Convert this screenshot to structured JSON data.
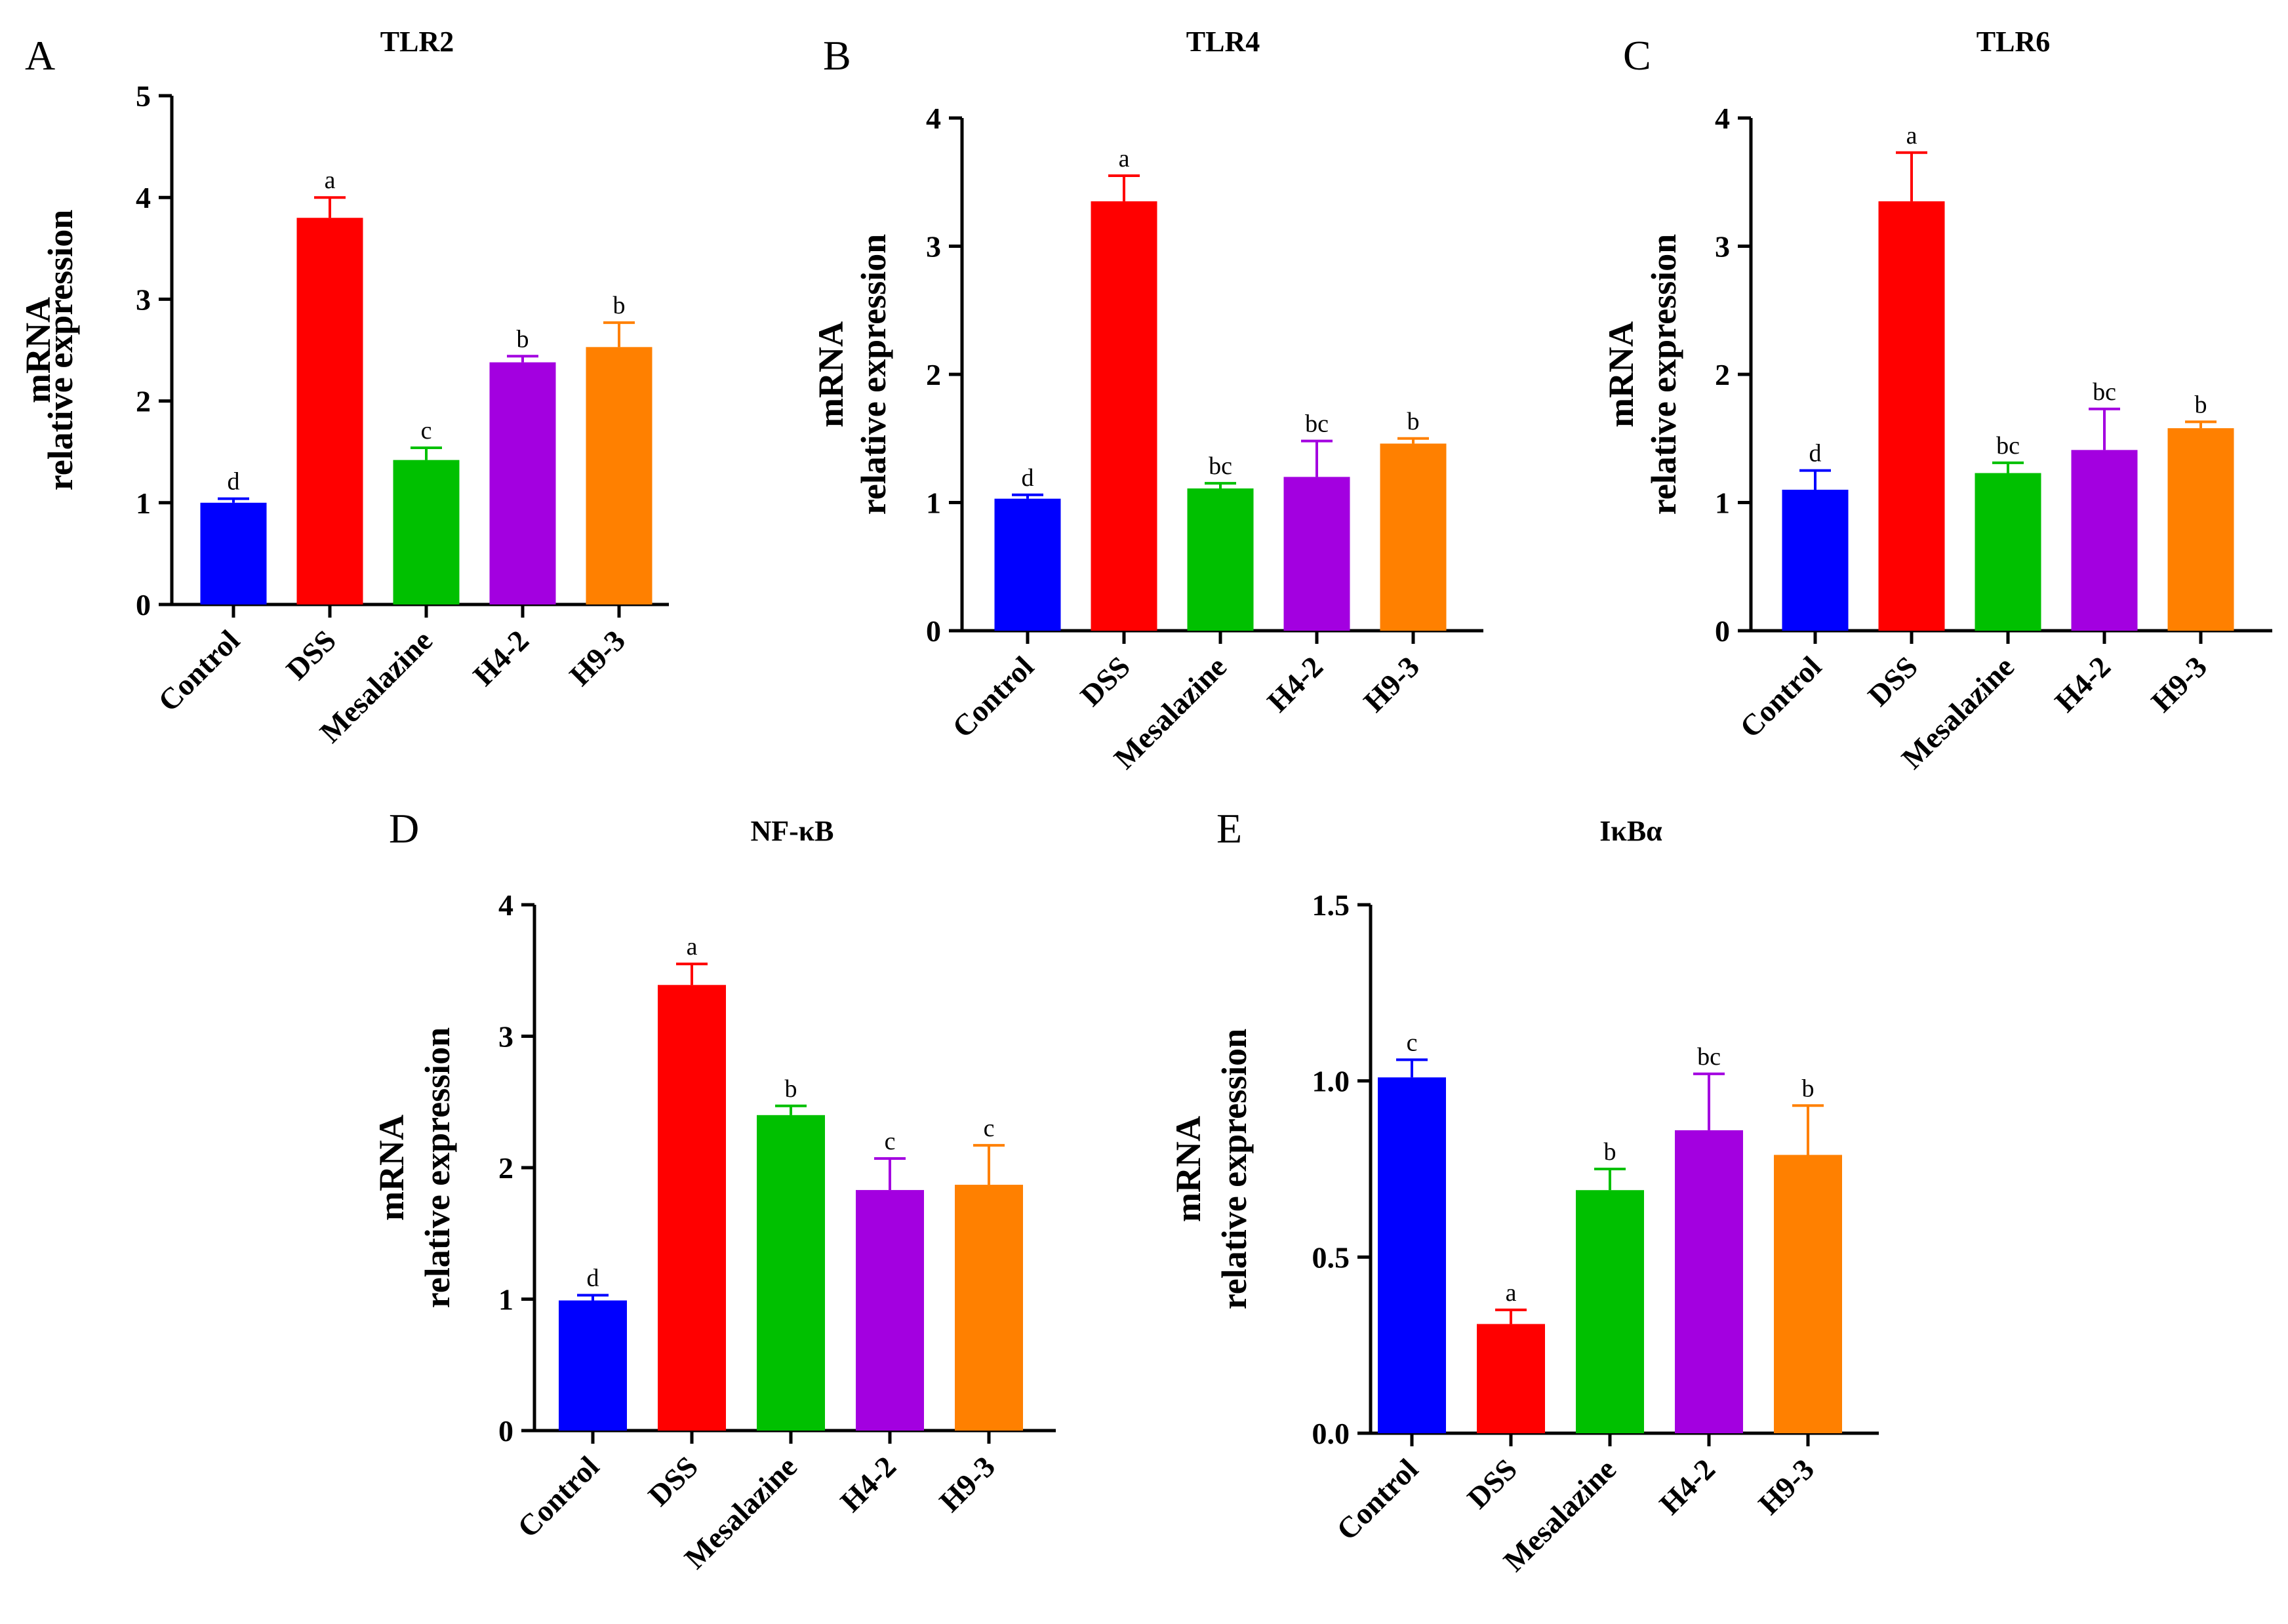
{
  "chart_data": [
    {
      "panel": "A",
      "type": "bar",
      "title": "TLR2",
      "ylabel_lines": [
        "mRNA",
        "relative expression"
      ],
      "categories": [
        "Control",
        "DSS",
        "Mesalazine",
        "H4-2",
        "H9-3"
      ],
      "values": [
        1.0,
        3.8,
        1.42,
        2.38,
        2.53
      ],
      "errors": [
        0.04,
        0.2,
        0.12,
        0.06,
        0.24
      ],
      "significance": [
        "d",
        "a",
        "c",
        "b",
        "b"
      ],
      "colors": [
        "#0000FF",
        "#FF0000",
        "#00C000",
        "#A300E0",
        "#FF8000"
      ],
      "ylim": [
        0,
        5
      ],
      "ytick_labels": [
        "0",
        "1",
        "2",
        "3",
        "4",
        "5"
      ]
    },
    {
      "panel": "B",
      "type": "bar",
      "title": "TLR4",
      "ylabel_lines": [
        "mRNA",
        "relative expression"
      ],
      "categories": [
        "Control",
        "DSS",
        "Mesalazine",
        "H4-2",
        "H9-3"
      ],
      "values": [
        1.03,
        3.35,
        1.11,
        1.2,
        1.46
      ],
      "errors": [
        0.03,
        0.2,
        0.04,
        0.28,
        0.04
      ],
      "significance": [
        "d",
        "a",
        "bc",
        "bc",
        "b"
      ],
      "colors": [
        "#0000FF",
        "#FF0000",
        "#00C000",
        "#A300E0",
        "#FF8000"
      ],
      "ylim": [
        0,
        4
      ],
      "ytick_labels": [
        "0",
        "1",
        "2",
        "3",
        "4"
      ]
    },
    {
      "panel": "C",
      "type": "bar",
      "title": "TLR6",
      "ylabel_lines": [
        "mRNA",
        "relative expression"
      ],
      "categories": [
        "Control",
        "DSS",
        "Mesalazine",
        "H4-2",
        "H9-3"
      ],
      "values": [
        1.1,
        3.35,
        1.23,
        1.41,
        1.58
      ],
      "errors": [
        0.15,
        0.38,
        0.08,
        0.32,
        0.05
      ],
      "significance": [
        "d",
        "a",
        "bc",
        "bc",
        "b"
      ],
      "colors": [
        "#0000FF",
        "#FF0000",
        "#00C000",
        "#A300E0",
        "#FF8000"
      ],
      "ylim": [
        0,
        4
      ],
      "ytick_labels": [
        "0",
        "1",
        "2",
        "3",
        "4"
      ]
    },
    {
      "panel": "D",
      "type": "bar",
      "title": "NF-κB",
      "ylabel_lines": [
        "mRNA",
        "relative expression"
      ],
      "categories": [
        "Control",
        "DSS",
        "Mesalazine",
        "H4-2",
        "H9-3"
      ],
      "values": [
        0.99,
        3.39,
        2.4,
        1.83,
        1.87
      ],
      "errors": [
        0.04,
        0.16,
        0.07,
        0.24,
        0.3
      ],
      "significance": [
        "d",
        "a",
        "b",
        "c",
        "c"
      ],
      "colors": [
        "#0000FF",
        "#FF0000",
        "#00C000",
        "#A300E0",
        "#FF8000"
      ],
      "ylim": [
        0,
        4
      ],
      "ytick_labels": [
        "0",
        "1",
        "2",
        "3",
        "4"
      ]
    },
    {
      "panel": "E",
      "type": "bar",
      "title": "IκBα",
      "ylabel_lines": [
        "mRNA",
        "relative expression"
      ],
      "categories": [
        "Control",
        "DSS",
        "Mesalazine",
        "H4-2",
        "H9-3"
      ],
      "values": [
        1.01,
        0.31,
        0.69,
        0.86,
        0.79
      ],
      "errors": [
        0.05,
        0.04,
        0.06,
        0.16,
        0.14
      ],
      "significance": [
        "c",
        "a",
        "b",
        "bc",
        "b"
      ],
      "colors": [
        "#0000FF",
        "#FF0000",
        "#00C000",
        "#A300E0",
        "#FF8000"
      ],
      "ylim": [
        0,
        1.5
      ],
      "ytick_labels": [
        "0.0",
        "0.5",
        "1.0",
        "1.5"
      ]
    }
  ]
}
